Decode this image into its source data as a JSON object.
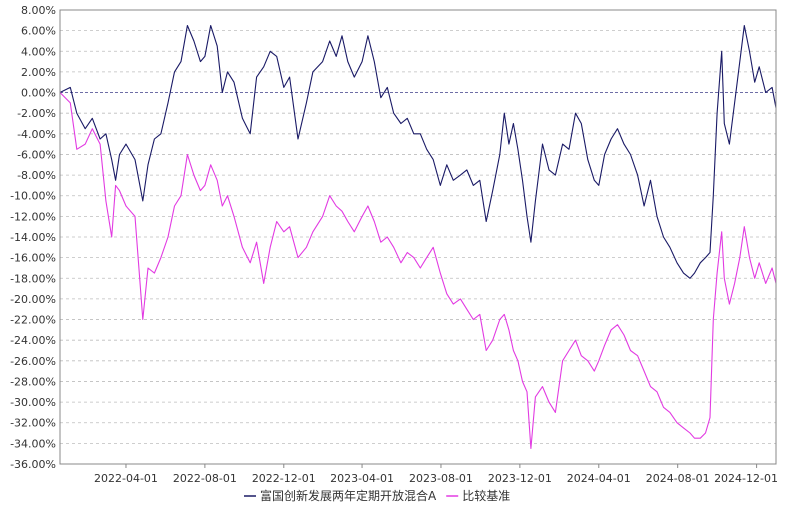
{
  "chart_data": {
    "type": "line",
    "ylim": [
      -36,
      8
    ],
    "ytick_step": 2,
    "yticks": [
      "8.00%",
      "6.00%",
      "4.00%",
      "2.00%",
      "0.00%",
      "-2.00%",
      "-4.00%",
      "-6.00%",
      "-8.00%",
      "-10.00%",
      "-12.00%",
      "-14.00%",
      "-16.00%",
      "-18.00%",
      "-20.00%",
      "-22.00%",
      "-24.00%",
      "-26.00%",
      "-28.00%",
      "-30.00%",
      "-32.00%",
      "-34.00%",
      "-36.00%"
    ],
    "xlim": [
      "2021-12-20",
      "2024-12-31"
    ],
    "xticks": [
      "2022-04-01",
      "2022-08-01",
      "2022-12-01",
      "2023-04-01",
      "2023-08-01",
      "2023-12-01",
      "2024-04-01",
      "2024-08-01",
      "2024-12-01"
    ],
    "grid": true,
    "legend_position": "bottom",
    "series": [
      {
        "name": "富国创新发展两年定期开放混合A",
        "color": "#1a1a66",
        "points": [
          [
            "2021-12-20",
            0.0
          ],
          [
            "2022-01-05",
            0.5
          ],
          [
            "2022-01-15",
            -2.0
          ],
          [
            "2022-01-28",
            -3.5
          ],
          [
            "2022-02-08",
            -2.5
          ],
          [
            "2022-02-20",
            -4.5
          ],
          [
            "2022-03-01",
            -4.0
          ],
          [
            "2022-03-10",
            -6.5
          ],
          [
            "2022-03-16",
            -8.5
          ],
          [
            "2022-03-22",
            -6.0
          ],
          [
            "2022-04-01",
            -5.0
          ],
          [
            "2022-04-15",
            -6.5
          ],
          [
            "2022-04-27",
            -10.5
          ],
          [
            "2022-05-05",
            -7.0
          ],
          [
            "2022-05-15",
            -4.5
          ],
          [
            "2022-05-25",
            -4.0
          ],
          [
            "2022-06-05",
            -1.0
          ],
          [
            "2022-06-15",
            2.0
          ],
          [
            "2022-06-25",
            3.0
          ],
          [
            "2022-07-05",
            6.5
          ],
          [
            "2022-07-15",
            5.0
          ],
          [
            "2022-07-25",
            3.0
          ],
          [
            "2022-08-01",
            3.5
          ],
          [
            "2022-08-10",
            6.5
          ],
          [
            "2022-08-20",
            4.5
          ],
          [
            "2022-08-28",
            0.0
          ],
          [
            "2022-09-05",
            2.0
          ],
          [
            "2022-09-15",
            1.0
          ],
          [
            "2022-09-28",
            -2.5
          ],
          [
            "2022-10-10",
            -4.0
          ],
          [
            "2022-10-20",
            1.5
          ],
          [
            "2022-10-31",
            2.5
          ],
          [
            "2022-11-10",
            4.0
          ],
          [
            "2022-11-20",
            3.5
          ],
          [
            "2022-12-01",
            0.5
          ],
          [
            "2022-12-10",
            1.5
          ],
          [
            "2022-12-23",
            -4.5
          ],
          [
            "2023-01-05",
            -1.0
          ],
          [
            "2023-01-15",
            2.0
          ],
          [
            "2023-01-30",
            3.0
          ],
          [
            "2023-02-10",
            5.0
          ],
          [
            "2023-02-20",
            3.5
          ],
          [
            "2023-03-01",
            5.5
          ],
          [
            "2023-03-10",
            3.0
          ],
          [
            "2023-03-20",
            1.5
          ],
          [
            "2023-04-01",
            3.0
          ],
          [
            "2023-04-10",
            5.5
          ],
          [
            "2023-04-20",
            3.0
          ],
          [
            "2023-04-30",
            -0.5
          ],
          [
            "2023-05-10",
            0.5
          ],
          [
            "2023-05-20",
            -2.0
          ],
          [
            "2023-05-31",
            -3.0
          ],
          [
            "2023-06-10",
            -2.5
          ],
          [
            "2023-06-20",
            -4.0
          ],
          [
            "2023-06-30",
            -4.0
          ],
          [
            "2023-07-10",
            -5.5
          ],
          [
            "2023-07-20",
            -6.5
          ],
          [
            "2023-07-31",
            -9.0
          ],
          [
            "2023-08-10",
            -7.0
          ],
          [
            "2023-08-20",
            -8.5
          ],
          [
            "2023-08-31",
            -8.0
          ],
          [
            "2023-09-10",
            -7.5
          ],
          [
            "2023-09-20",
            -9.0
          ],
          [
            "2023-09-30",
            -8.5
          ],
          [
            "2023-10-10",
            -12.5
          ],
          [
            "2023-10-20",
            -9.5
          ],
          [
            "2023-10-31",
            -6.0
          ],
          [
            "2023-11-07",
            -2.0
          ],
          [
            "2023-11-14",
            -5.0
          ],
          [
            "2023-11-21",
            -3.0
          ],
          [
            "2023-11-28",
            -5.5
          ],
          [
            "2023-12-05",
            -8.5
          ],
          [
            "2023-12-12",
            -12.0
          ],
          [
            "2023-12-18",
            -14.5
          ],
          [
            "2023-12-25",
            -10.5
          ],
          [
            "2024-01-05",
            -5.0
          ],
          [
            "2024-01-15",
            -7.5
          ],
          [
            "2024-01-25",
            -8.0
          ],
          [
            "2024-02-05",
            -5.0
          ],
          [
            "2024-02-15",
            -5.5
          ],
          [
            "2024-02-25",
            -2.0
          ],
          [
            "2024-03-05",
            -3.0
          ],
          [
            "2024-03-15",
            -6.5
          ],
          [
            "2024-03-25",
            -8.5
          ],
          [
            "2024-04-01",
            -9.0
          ],
          [
            "2024-04-10",
            -6.0
          ],
          [
            "2024-04-20",
            -4.5
          ],
          [
            "2024-04-30",
            -3.5
          ],
          [
            "2024-05-10",
            -5.0
          ],
          [
            "2024-05-20",
            -6.0
          ],
          [
            "2024-05-31",
            -8.0
          ],
          [
            "2024-06-10",
            -11.0
          ],
          [
            "2024-06-20",
            -8.5
          ],
          [
            "2024-06-30",
            -12.0
          ],
          [
            "2024-07-10",
            -14.0
          ],
          [
            "2024-07-20",
            -15.0
          ],
          [
            "2024-07-31",
            -16.5
          ],
          [
            "2024-08-10",
            -17.5
          ],
          [
            "2024-08-20",
            -18.0
          ],
          [
            "2024-08-27",
            -17.5
          ],
          [
            "2024-09-05",
            -16.5
          ],
          [
            "2024-09-13",
            -16.0
          ],
          [
            "2024-09-20",
            -15.5
          ],
          [
            "2024-09-25",
            -10.0
          ],
          [
            "2024-10-01",
            -2.0
          ],
          [
            "2024-10-08",
            4.0
          ],
          [
            "2024-10-12",
            -3.0
          ],
          [
            "2024-10-20",
            -5.0
          ],
          [
            "2024-10-28",
            -1.0
          ],
          [
            "2024-11-05",
            3.0
          ],
          [
            "2024-11-12",
            6.5
          ],
          [
            "2024-11-20",
            4.0
          ],
          [
            "2024-11-28",
            1.0
          ],
          [
            "2024-12-05",
            2.5
          ],
          [
            "2024-12-15",
            0.0
          ],
          [
            "2024-12-25",
            0.5
          ],
          [
            "2024-12-31",
            -1.5
          ]
        ]
      },
      {
        "name": "比较基准",
        "color": "#e23be2",
        "points": [
          [
            "2021-12-20",
            0.0
          ],
          [
            "2022-01-05",
            -1.0
          ],
          [
            "2022-01-15",
            -5.5
          ],
          [
            "2022-01-28",
            -5.0
          ],
          [
            "2022-02-08",
            -3.5
          ],
          [
            "2022-02-20",
            -5.0
          ],
          [
            "2022-03-01",
            -10.5
          ],
          [
            "2022-03-10",
            -14.0
          ],
          [
            "2022-03-16",
            -9.0
          ],
          [
            "2022-03-22",
            -9.5
          ],
          [
            "2022-04-01",
            -11.0
          ],
          [
            "2022-04-15",
            -12.0
          ],
          [
            "2022-04-27",
            -22.0
          ],
          [
            "2022-05-05",
            -17.0
          ],
          [
            "2022-05-15",
            -17.5
          ],
          [
            "2022-05-25",
            -16.0
          ],
          [
            "2022-06-05",
            -14.0
          ],
          [
            "2022-06-15",
            -11.0
          ],
          [
            "2022-06-25",
            -10.0
          ],
          [
            "2022-07-05",
            -6.0
          ],
          [
            "2022-07-15",
            -8.0
          ],
          [
            "2022-07-25",
            -9.5
          ],
          [
            "2022-08-01",
            -9.0
          ],
          [
            "2022-08-10",
            -7.0
          ],
          [
            "2022-08-20",
            -8.5
          ],
          [
            "2022-08-28",
            -11.0
          ],
          [
            "2022-09-05",
            -10.0
          ],
          [
            "2022-09-15",
            -12.0
          ],
          [
            "2022-09-28",
            -15.0
          ],
          [
            "2022-10-10",
            -16.5
          ],
          [
            "2022-10-20",
            -14.5
          ],
          [
            "2022-10-31",
            -18.5
          ],
          [
            "2022-11-10",
            -15.0
          ],
          [
            "2022-11-20",
            -12.5
          ],
          [
            "2022-12-01",
            -13.5
          ],
          [
            "2022-12-10",
            -13.0
          ],
          [
            "2022-12-23",
            -16.0
          ],
          [
            "2023-01-05",
            -15.0
          ],
          [
            "2023-01-15",
            -13.5
          ],
          [
            "2023-01-30",
            -12.0
          ],
          [
            "2023-02-10",
            -10.0
          ],
          [
            "2023-02-20",
            -11.0
          ],
          [
            "2023-03-01",
            -11.5
          ],
          [
            "2023-03-10",
            -12.5
          ],
          [
            "2023-03-20",
            -13.5
          ],
          [
            "2023-04-01",
            -12.0
          ],
          [
            "2023-04-10",
            -11.0
          ],
          [
            "2023-04-20",
            -12.5
          ],
          [
            "2023-04-30",
            -14.5
          ],
          [
            "2023-05-10",
            -14.0
          ],
          [
            "2023-05-20",
            -15.0
          ],
          [
            "2023-05-31",
            -16.5
          ],
          [
            "2023-06-10",
            -15.5
          ],
          [
            "2023-06-20",
            -16.0
          ],
          [
            "2023-06-30",
            -17.0
          ],
          [
            "2023-07-10",
            -16.0
          ],
          [
            "2023-07-20",
            -15.0
          ],
          [
            "2023-07-31",
            -17.5
          ],
          [
            "2023-08-10",
            -19.5
          ],
          [
            "2023-08-20",
            -20.5
          ],
          [
            "2023-08-31",
            -20.0
          ],
          [
            "2023-09-10",
            -21.0
          ],
          [
            "2023-09-20",
            -22.0
          ],
          [
            "2023-09-30",
            -21.5
          ],
          [
            "2023-10-10",
            -25.0
          ],
          [
            "2023-10-20",
            -24.0
          ],
          [
            "2023-10-31",
            -22.0
          ],
          [
            "2023-11-07",
            -21.5
          ],
          [
            "2023-11-14",
            -23.0
          ],
          [
            "2023-11-21",
            -25.0
          ],
          [
            "2023-11-28",
            -26.0
          ],
          [
            "2023-12-05",
            -28.0
          ],
          [
            "2023-12-12",
            -29.0
          ],
          [
            "2023-12-18",
            -34.5
          ],
          [
            "2023-12-25",
            -29.5
          ],
          [
            "2024-01-05",
            -28.5
          ],
          [
            "2024-01-15",
            -30.0
          ],
          [
            "2024-01-25",
            -31.0
          ],
          [
            "2024-02-05",
            -26.0
          ],
          [
            "2024-02-15",
            -25.0
          ],
          [
            "2024-02-25",
            -24.0
          ],
          [
            "2024-03-05",
            -25.5
          ],
          [
            "2024-03-15",
            -26.0
          ],
          [
            "2024-03-25",
            -27.0
          ],
          [
            "2024-04-01",
            -26.0
          ],
          [
            "2024-04-10",
            -24.5
          ],
          [
            "2024-04-20",
            -23.0
          ],
          [
            "2024-04-30",
            -22.5
          ],
          [
            "2024-05-10",
            -23.5
          ],
          [
            "2024-05-20",
            -25.0
          ],
          [
            "2024-05-31",
            -25.5
          ],
          [
            "2024-06-10",
            -27.0
          ],
          [
            "2024-06-20",
            -28.5
          ],
          [
            "2024-06-30",
            -29.0
          ],
          [
            "2024-07-10",
            -30.5
          ],
          [
            "2024-07-20",
            -31.0
          ],
          [
            "2024-07-31",
            -32.0
          ],
          [
            "2024-08-10",
            -32.5
          ],
          [
            "2024-08-20",
            -33.0
          ],
          [
            "2024-08-27",
            -33.5
          ],
          [
            "2024-09-05",
            -33.5
          ],
          [
            "2024-09-13",
            -33.0
          ],
          [
            "2024-09-20",
            -31.5
          ],
          [
            "2024-09-25",
            -22.0
          ],
          [
            "2024-10-01",
            -17.5
          ],
          [
            "2024-10-08",
            -13.5
          ],
          [
            "2024-10-12",
            -18.0
          ],
          [
            "2024-10-20",
            -20.5
          ],
          [
            "2024-10-28",
            -18.5
          ],
          [
            "2024-11-05",
            -16.0
          ],
          [
            "2024-11-12",
            -13.0
          ],
          [
            "2024-11-20",
            -16.0
          ],
          [
            "2024-11-28",
            -18.0
          ],
          [
            "2024-12-05",
            -16.5
          ],
          [
            "2024-12-15",
            -18.5
          ],
          [
            "2024-12-25",
            -17.0
          ],
          [
            "2024-12-31",
            -18.5
          ]
        ]
      }
    ]
  }
}
